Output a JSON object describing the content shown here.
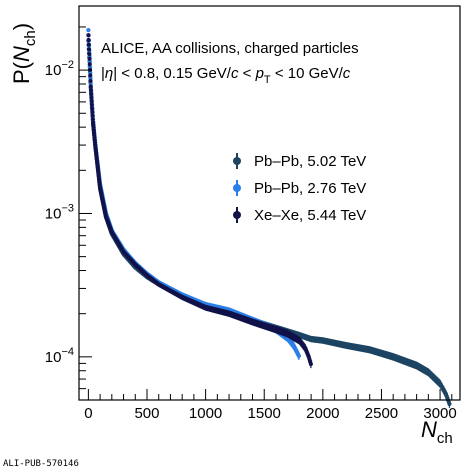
{
  "chart_data": {
    "type": "scatter",
    "title": "",
    "xlabel": "N",
    "xlabel_sub": "ch",
    "ylabel_pre": "P(",
    "ylabel_var": "N",
    "ylabel_sub": "ch",
    "ylabel_post": ")",
    "xlim": [
      -80,
      3170
    ],
    "ylim": [
      5e-05,
      0.028
    ],
    "yscale": "log",
    "grid": false,
    "legend_position": "right-middle",
    "x_ticks": [
      0,
      500,
      1000,
      1500,
      2000,
      2500,
      3000
    ],
    "x_tick_labels": [
      "0",
      "500",
      "1000",
      "1500",
      "2000",
      "2500",
      "3000"
    ],
    "y_ticks": [
      0.0001,
      0.001,
      0.01
    ],
    "y_tick_bases": [
      "10",
      "10",
      "10"
    ],
    "y_tick_exps": [
      "−4",
      "−3",
      "−2"
    ],
    "annotations": [
      "ALICE, AA collisions, charged particles",
      "|η| < 0.8, 0.15 GeV/c < pT < 10 GeV/c"
    ],
    "series": [
      {
        "name": "Pb–Pb, 5.02 TeV",
        "color": "#1d4563",
        "marker": "circle",
        "x": [
          0,
          10,
          20,
          40,
          60,
          100,
          150,
          200,
          300,
          400,
          500,
          600,
          800,
          1000,
          1200,
          1400,
          1600,
          1800,
          1900,
          2000,
          2200,
          2400,
          2600,
          2800,
          2900,
          3000,
          3050,
          3080
        ],
        "y": [
          0.016,
          0.0115,
          0.0075,
          0.0042,
          0.0029,
          0.0015,
          0.00095,
          0.00072,
          0.00052,
          0.00042,
          0.00036,
          0.00032,
          0.00027,
          0.00023,
          0.0002,
          0.00018,
          0.00016,
          0.000142,
          0.000133,
          0.00013,
          0.00012,
          0.000112,
          0.0001,
          8.7e-05,
          7.8e-05,
          6.5e-05,
          5.5e-05,
          4.7e-05
        ]
      },
      {
        "name": "Pb–Pb, 2.76 TeV",
        "color": "#2a7fe8",
        "marker": "circle",
        "x": [
          0,
          10,
          20,
          40,
          60,
          100,
          150,
          200,
          300,
          400,
          500,
          600,
          800,
          1000,
          1200,
          1400,
          1600,
          1700,
          1750,
          1800
        ],
        "y": [
          0.019,
          0.0125,
          0.008,
          0.0045,
          0.003,
          0.0016,
          0.001,
          0.00076,
          0.00056,
          0.00045,
          0.00038,
          0.00033,
          0.00027,
          0.00023,
          0.00021,
          0.00018,
          0.000155,
          0.000135,
          0.00012,
          0.0001
        ]
      },
      {
        "name": "Xe–Xe, 5.44 TeV",
        "color": "#12124a",
        "marker": "circle",
        "x": [
          0,
          10,
          20,
          40,
          60,
          100,
          150,
          200,
          300,
          400,
          500,
          600,
          800,
          1000,
          1200,
          1400,
          1600,
          1700,
          1800,
          1850,
          1880,
          1900
        ],
        "y": [
          0.0175,
          0.012,
          0.0077,
          0.0043,
          0.0029,
          0.0015,
          0.00095,
          0.00074,
          0.00054,
          0.00044,
          0.00037,
          0.00032,
          0.00026,
          0.00022,
          0.0002,
          0.000175,
          0.000155,
          0.000145,
          0.00013,
          0.000115,
          0.0001,
          8.8e-05
        ]
      }
    ]
  },
  "footer": {
    "publication_id": "ALI-PUB-570146"
  }
}
